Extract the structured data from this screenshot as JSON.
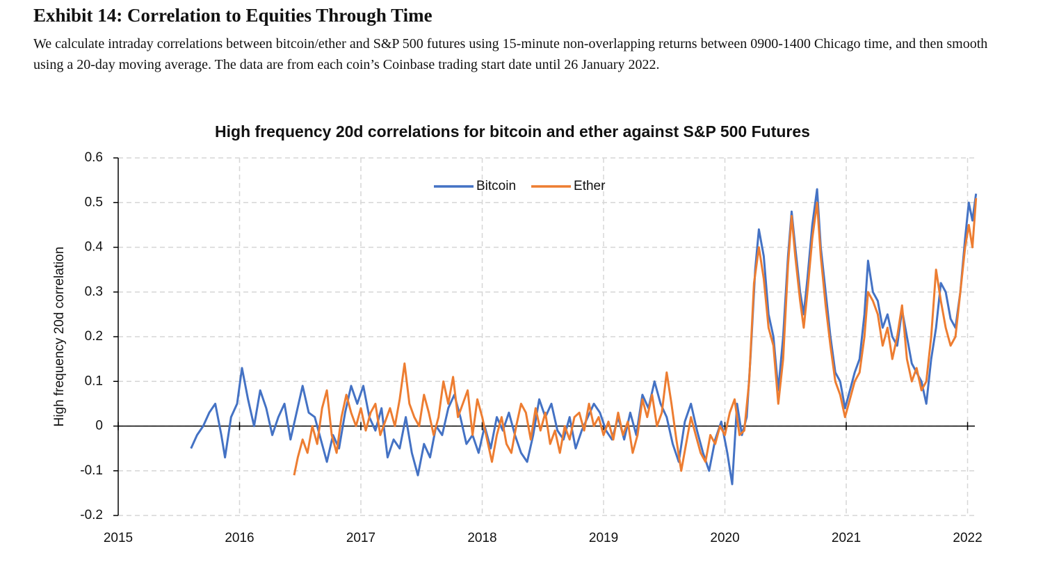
{
  "exhibit": {
    "title": "Exhibit 14: Correlation to Equities Through Time",
    "description": "We calculate intraday correlations between bitcoin/ether and S&P 500 futures using 15-minute non-overlapping returns between 0900-1400 Chicago time, and then smooth using a 20-day moving average. The data are from each coin’s Coinbase trading start date until 26 January 2022."
  },
  "chart_data": {
    "type": "line",
    "title": "High frequency 20d correlations for bitcoin and ether against S&P 500 Futures",
    "y_label": "High frequency 20d correlation",
    "xlim": [
      2015,
      2022.06
    ],
    "xticks": [
      2015,
      2016,
      2017,
      2018,
      2019,
      2020,
      2021,
      2022
    ],
    "ylim": [
      -0.2,
      0.6
    ],
    "yticks": [
      -0.2,
      -0.1,
      0,
      0.1,
      0.2,
      0.3,
      0.4,
      0.5,
      0.6
    ],
    "grid": true,
    "legend": "top",
    "series": [
      {
        "name": "Bitcoin",
        "color": "#4472c4",
        "x": [
          2015.6,
          2015.65,
          2015.7,
          2015.75,
          2015.8,
          2015.85,
          2015.88,
          2015.93,
          2015.98,
          2016.02,
          2016.07,
          2016.12,
          2016.17,
          2016.22,
          2016.27,
          2016.32,
          2016.37,
          2016.42,
          2016.47,
          2016.52,
          2016.57,
          2016.62,
          2016.67,
          2016.72,
          2016.77,
          2016.82,
          2016.87,
          2016.92,
          2016.97,
          2017.02,
          2017.07,
          2017.12,
          2017.17,
          2017.22,
          2017.27,
          2017.32,
          2017.37,
          2017.42,
          2017.47,
          2017.52,
          2017.57,
          2017.62,
          2017.67,
          2017.72,
          2017.77,
          2017.82,
          2017.87,
          2017.92,
          2017.97,
          2018.02,
          2018.07,
          2018.12,
          2018.17,
          2018.22,
          2018.27,
          2018.32,
          2018.37,
          2018.42,
          2018.47,
          2018.52,
          2018.57,
          2018.62,
          2018.67,
          2018.72,
          2018.77,
          2018.82,
          2018.87,
          2018.92,
          2018.97,
          2019.02,
          2019.07,
          2019.12,
          2019.17,
          2019.22,
          2019.27,
          2019.32,
          2019.37,
          2019.42,
          2019.47,
          2019.52,
          2019.57,
          2019.62,
          2019.67,
          2019.72,
          2019.77,
          2019.82,
          2019.87,
          2019.92,
          2019.97,
          2020.02,
          2020.06,
          2020.1,
          2020.14,
          2020.18,
          2020.21,
          2020.25,
          2020.28,
          2020.32,
          2020.36,
          2020.4,
          2020.44,
          2020.48,
          2020.52,
          2020.55,
          2020.58,
          2020.62,
          2020.65,
          2020.68,
          2020.72,
          2020.76,
          2020.79,
          2020.83,
          2020.87,
          2020.91,
          2020.95,
          2020.99,
          2021.03,
          2021.07,
          2021.11,
          2021.15,
          2021.18,
          2021.22,
          2021.26,
          2021.3,
          2021.34,
          2021.38,
          2021.42,
          2021.46,
          2021.5,
          2021.54,
          2021.58,
          2021.62,
          2021.66,
          2021.7,
          2021.74,
          2021.78,
          2021.82,
          2021.86,
          2021.9,
          2021.94,
          2021.98,
          2022.01,
          2022.04,
          2022.07
        ],
        "values": [
          -0.05,
          -0.02,
          0.0,
          0.03,
          0.05,
          -0.02,
          -0.07,
          0.02,
          0.05,
          0.13,
          0.06,
          0.0,
          0.08,
          0.04,
          -0.02,
          0.02,
          0.05,
          -0.03,
          0.03,
          0.09,
          0.03,
          0.02,
          -0.03,
          -0.08,
          -0.02,
          -0.05,
          0.03,
          0.09,
          0.05,
          0.09,
          0.02,
          -0.01,
          0.04,
          -0.07,
          -0.03,
          -0.05,
          0.02,
          -0.06,
          -0.11,
          -0.04,
          -0.07,
          0.0,
          -0.02,
          0.04,
          0.07,
          0.02,
          -0.04,
          -0.02,
          -0.06,
          0.0,
          -0.05,
          0.02,
          -0.01,
          0.03,
          -0.02,
          -0.06,
          -0.08,
          -0.02,
          0.06,
          0.02,
          0.05,
          -0.01,
          -0.03,
          0.02,
          -0.05,
          -0.01,
          0.02,
          0.05,
          0.03,
          -0.01,
          -0.03,
          0.02,
          -0.03,
          0.03,
          -0.02,
          0.07,
          0.04,
          0.1,
          0.05,
          0.02,
          -0.04,
          -0.08,
          0.01,
          0.05,
          -0.01,
          -0.06,
          -0.1,
          -0.03,
          0.01,
          -0.06,
          -0.13,
          0.05,
          -0.02,
          0.02,
          0.15,
          0.35,
          0.44,
          0.38,
          0.25,
          0.2,
          0.08,
          0.2,
          0.38,
          0.48,
          0.4,
          0.3,
          0.25,
          0.33,
          0.45,
          0.53,
          0.4,
          0.3,
          0.2,
          0.12,
          0.1,
          0.04,
          0.08,
          0.12,
          0.15,
          0.25,
          0.37,
          0.3,
          0.28,
          0.22,
          0.25,
          0.2,
          0.18,
          0.26,
          0.2,
          0.14,
          0.12,
          0.1,
          0.05,
          0.15,
          0.22,
          0.32,
          0.3,
          0.24,
          0.22,
          0.3,
          0.42,
          0.5,
          0.46,
          0.52
        ]
      },
      {
        "name": "Ether",
        "color": "#ed7d31",
        "x": [
          2016.45,
          2016.48,
          2016.52,
          2016.56,
          2016.6,
          2016.64,
          2016.68,
          2016.72,
          2016.76,
          2016.8,
          2016.84,
          2016.88,
          2016.92,
          2016.96,
          2017.0,
          2017.04,
          2017.08,
          2017.12,
          2017.16,
          2017.2,
          2017.24,
          2017.28,
          2017.32,
          2017.36,
          2017.4,
          2017.44,
          2017.48,
          2017.52,
          2017.56,
          2017.6,
          2017.64,
          2017.68,
          2017.72,
          2017.76,
          2017.8,
          2017.84,
          2017.88,
          2017.92,
          2017.96,
          2018.0,
          2018.04,
          2018.08,
          2018.12,
          2018.16,
          2018.2,
          2018.24,
          2018.28,
          2018.32,
          2018.36,
          2018.4,
          2018.44,
          2018.48,
          2018.52,
          2018.56,
          2018.6,
          2018.64,
          2018.68,
          2018.72,
          2018.76,
          2018.8,
          2018.84,
          2018.88,
          2018.92,
          2018.96,
          2019.0,
          2019.04,
          2019.08,
          2019.12,
          2019.16,
          2019.2,
          2019.24,
          2019.28,
          2019.32,
          2019.36,
          2019.4,
          2019.44,
          2019.48,
          2019.52,
          2019.56,
          2019.6,
          2019.64,
          2019.68,
          2019.72,
          2019.76,
          2019.8,
          2019.84,
          2019.88,
          2019.92,
          2019.96,
          2020.0,
          2020.04,
          2020.08,
          2020.12,
          2020.16,
          2020.2,
          2020.24,
          2020.28,
          2020.32,
          2020.36,
          2020.4,
          2020.44,
          2020.48,
          2020.52,
          2020.55,
          2020.58,
          2020.62,
          2020.65,
          2020.68,
          2020.72,
          2020.76,
          2020.79,
          2020.83,
          2020.87,
          2020.91,
          2020.95,
          2020.99,
          2021.03,
          2021.07,
          2021.11,
          2021.15,
          2021.18,
          2021.22,
          2021.26,
          2021.3,
          2021.34,
          2021.38,
          2021.42,
          2021.46,
          2021.5,
          2021.54,
          2021.58,
          2021.62,
          2021.66,
          2021.7,
          2021.74,
          2021.78,
          2021.82,
          2021.86,
          2021.9,
          2021.94,
          2021.98,
          2022.01,
          2022.04,
          2022.07
        ],
        "values": [
          -0.11,
          -0.07,
          -0.03,
          -0.06,
          0.0,
          -0.04,
          0.04,
          0.08,
          -0.02,
          -0.06,
          0.02,
          0.07,
          0.03,
          0.0,
          0.04,
          -0.01,
          0.03,
          0.05,
          -0.02,
          0.01,
          0.04,
          0.0,
          0.06,
          0.14,
          0.05,
          0.02,
          0.0,
          0.07,
          0.03,
          -0.02,
          0.02,
          0.1,
          0.05,
          0.11,
          0.02,
          0.05,
          0.08,
          -0.02,
          0.06,
          0.02,
          -0.03,
          -0.08,
          -0.02,
          0.02,
          -0.04,
          -0.06,
          0.0,
          0.05,
          0.03,
          -0.03,
          0.04,
          -0.01,
          0.03,
          -0.04,
          -0.01,
          -0.06,
          0.0,
          -0.03,
          0.02,
          0.03,
          -0.01,
          0.05,
          0.0,
          0.02,
          -0.02,
          0.01,
          -0.03,
          0.03,
          -0.02,
          0.01,
          -0.06,
          -0.02,
          0.06,
          0.02,
          0.07,
          0.0,
          0.03,
          0.12,
          0.05,
          -0.03,
          -0.1,
          -0.04,
          0.02,
          -0.02,
          -0.06,
          -0.08,
          -0.02,
          -0.04,
          0.0,
          -0.02,
          0.03,
          0.06,
          -0.02,
          -0.01,
          0.1,
          0.32,
          0.4,
          0.33,
          0.22,
          0.18,
          0.05,
          0.15,
          0.36,
          0.47,
          0.38,
          0.28,
          0.22,
          0.3,
          0.42,
          0.5,
          0.38,
          0.27,
          0.18,
          0.1,
          0.07,
          0.02,
          0.06,
          0.1,
          0.12,
          0.2,
          0.3,
          0.28,
          0.25,
          0.18,
          0.22,
          0.15,
          0.2,
          0.27,
          0.15,
          0.1,
          0.13,
          0.08,
          0.1,
          0.2,
          0.35,
          0.28,
          0.22,
          0.18,
          0.2,
          0.3,
          0.4,
          0.45,
          0.4,
          0.51
        ]
      }
    ]
  }
}
